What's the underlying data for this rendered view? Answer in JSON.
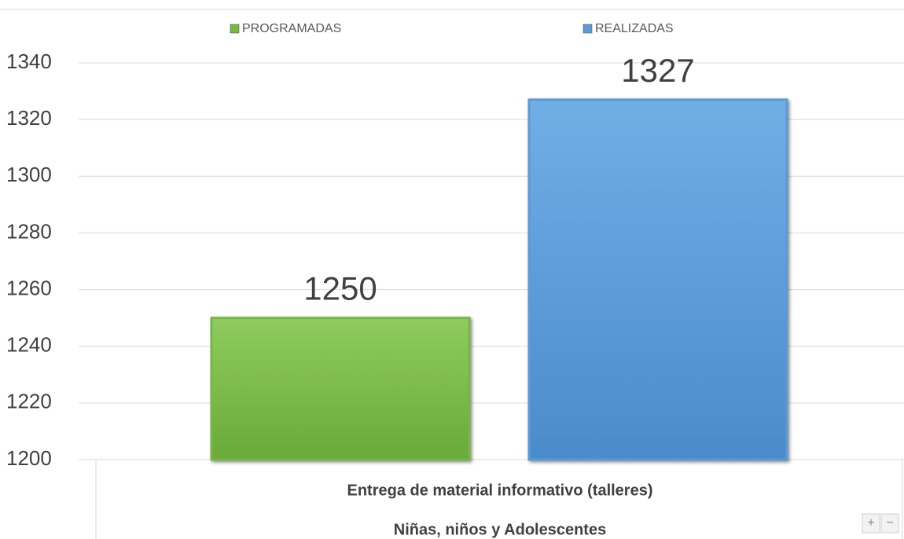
{
  "chart_data": {
    "type": "bar",
    "categories": [
      "Entrega de material informativo (talleres)"
    ],
    "category_group": "Niñas, niños y Adolescentes",
    "series": [
      {
        "name": "PROGRAMADAS",
        "color": "#76b843",
        "values": [
          1250
        ]
      },
      {
        "name": "REALIZADAS",
        "color": "#5b9bd5",
        "values": [
          1327
        ]
      }
    ],
    "ylim": [
      1200,
      1340
    ],
    "yticks": [
      1200,
      1220,
      1240,
      1260,
      1280,
      1300,
      1320,
      1340
    ],
    "grid": true,
    "legend": "top",
    "data_labels": true
  },
  "zoom_controls": [
    "+",
    "−"
  ]
}
